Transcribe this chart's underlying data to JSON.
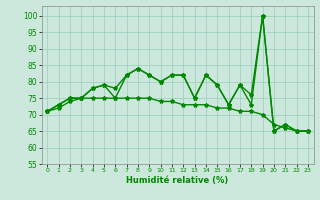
{
  "title": "",
  "xlabel": "Humidité relative (%)",
  "background_color": "#cce8dc",
  "grid_color": "#99ccbb",
  "line_color": "#008800",
  "xlim": [
    -0.5,
    23.5
  ],
  "ylim": [
    55,
    103
  ],
  "yticks": [
    55,
    60,
    65,
    70,
    75,
    80,
    85,
    90,
    95,
    100
  ],
  "xticks": [
    0,
    1,
    2,
    3,
    4,
    5,
    6,
    7,
    8,
    9,
    10,
    11,
    12,
    13,
    14,
    15,
    16,
    17,
    18,
    19,
    20,
    21,
    22,
    23
  ],
  "series": [
    [
      71,
      73,
      75,
      75,
      78,
      79,
      78,
      82,
      84,
      82,
      80,
      82,
      82,
      75,
      82,
      79,
      73,
      79,
      76,
      100,
      65,
      67,
      65,
      65
    ],
    [
      71,
      73,
      75,
      75,
      78,
      79,
      75,
      82,
      84,
      82,
      80,
      82,
      82,
      75,
      82,
      79,
      73,
      79,
      73,
      100,
      65,
      67,
      65,
      65
    ],
    [
      71,
      72,
      74,
      75,
      75,
      75,
      75,
      75,
      75,
      75,
      74,
      74,
      73,
      73,
      73,
      72,
      72,
      71,
      71,
      70,
      67,
      66,
      65,
      65
    ]
  ],
  "marker": "*",
  "markersize": 3,
  "linewidth": 1.0
}
